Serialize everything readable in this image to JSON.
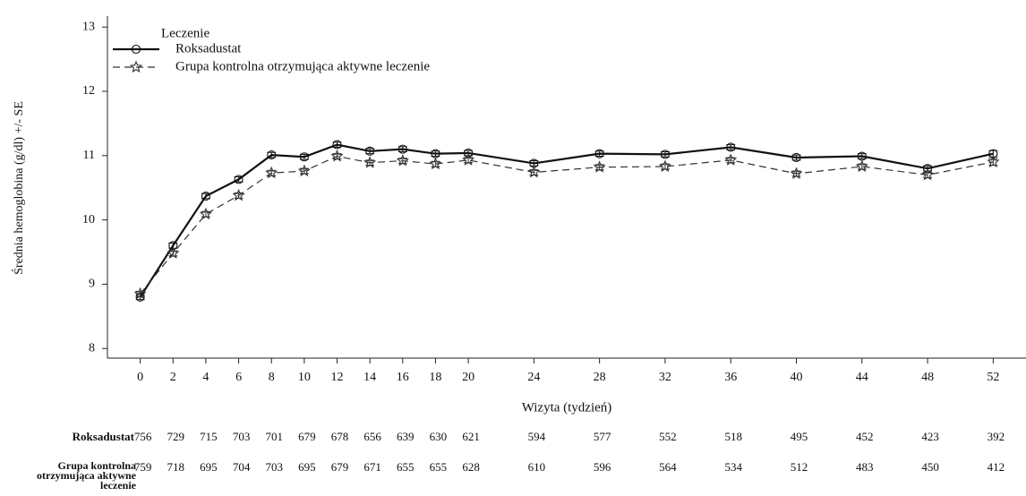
{
  "chart_data": {
    "type": "line",
    "ylabel": "Średnia hemoglobina (g/dl) +/- SE",
    "xlabel": "Wizyta (tydzień)",
    "legend_title": "Leczenie",
    "legend_position": "upper left",
    "x": [
      0,
      2,
      4,
      6,
      8,
      10,
      12,
      14,
      16,
      18,
      20,
      24,
      28,
      32,
      36,
      40,
      44,
      48,
      52
    ],
    "xlim": [
      -2,
      54
    ],
    "xticks": [
      0,
      2,
      4,
      6,
      8,
      10,
      12,
      14,
      16,
      18,
      20,
      24,
      28,
      32,
      36,
      40,
      44,
      48,
      52
    ],
    "ylim": [
      7.85,
      13.17
    ],
    "yticks": [
      8,
      9,
      10,
      11,
      12,
      13
    ],
    "series": [
      {
        "name": "Roksadustat",
        "color": "#111111",
        "marker": "circle",
        "dash": "solid",
        "values": [
          8.8,
          9.6,
          10.37,
          10.63,
          11.01,
          10.98,
          11.17,
          11.07,
          11.1,
          11.03,
          11.04,
          10.88,
          11.03,
          11.02,
          11.13,
          10.97,
          10.99,
          10.8,
          11.03
        ],
        "errors": [
          0.04,
          0.04,
          0.04,
          0.04,
          0.04,
          0.04,
          0.04,
          0.04,
          0.04,
          0.04,
          0.04,
          0.04,
          0.04,
          0.04,
          0.04,
          0.04,
          0.04,
          0.04,
          0.05
        ]
      },
      {
        "name": "Grupa kontrolna otrzymująca aktywne leczenie",
        "color": "#333333",
        "marker": "star",
        "dash": "dashed",
        "values": [
          8.85,
          9.48,
          10.09,
          10.38,
          10.73,
          10.76,
          10.99,
          10.89,
          10.92,
          10.87,
          10.93,
          10.74,
          10.82,
          10.83,
          10.93,
          10.72,
          10.83,
          10.7,
          10.9
        ],
        "errors": [
          0.04,
          0.04,
          0.04,
          0.04,
          0.04,
          0.04,
          0.04,
          0.04,
          0.04,
          0.04,
          0.04,
          0.04,
          0.04,
          0.04,
          0.04,
          0.04,
          0.04,
          0.04,
          0.05
        ]
      }
    ]
  },
  "risk_table": {
    "rows": [
      {
        "label": "Roksadustat",
        "counts": [
          756,
          729,
          715,
          703,
          701,
          679,
          678,
          656,
          639,
          630,
          621,
          594,
          577,
          552,
          518,
          495,
          452,
          423,
          392
        ]
      },
      {
        "label": "Grupa kontrolna otrzymująca aktywne leczenie",
        "counts": [
          759,
          718,
          695,
          704,
          703,
          695,
          679,
          671,
          655,
          655,
          628,
          610,
          596,
          564,
          534,
          512,
          483,
          450,
          412
        ]
      }
    ]
  }
}
